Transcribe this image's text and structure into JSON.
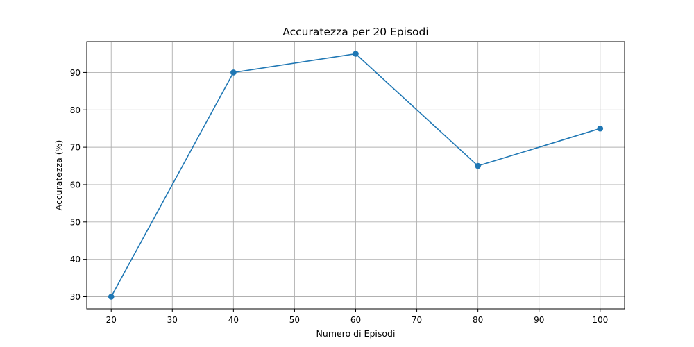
{
  "chart_data": {
    "type": "line",
    "title": "Accuratezza per 20 Episodi",
    "xlabel": "Numero di Episodi",
    "ylabel": "Accuratezza (%)",
    "x": [
      20,
      40,
      60,
      80,
      100
    ],
    "series": [
      {
        "values": [
          30,
          90,
          95,
          65,
          75
        ],
        "color": "#1f77b4",
        "marker": "circle"
      }
    ],
    "xlim": [
      16,
      104
    ],
    "ylim": [
      26.75,
      98.25
    ],
    "xticks": [
      20,
      30,
      40,
      50,
      60,
      70,
      80,
      90,
      100
    ],
    "yticks": [
      30,
      40,
      50,
      60,
      70,
      80,
      90
    ],
    "grid": true,
    "legend": "none"
  }
}
